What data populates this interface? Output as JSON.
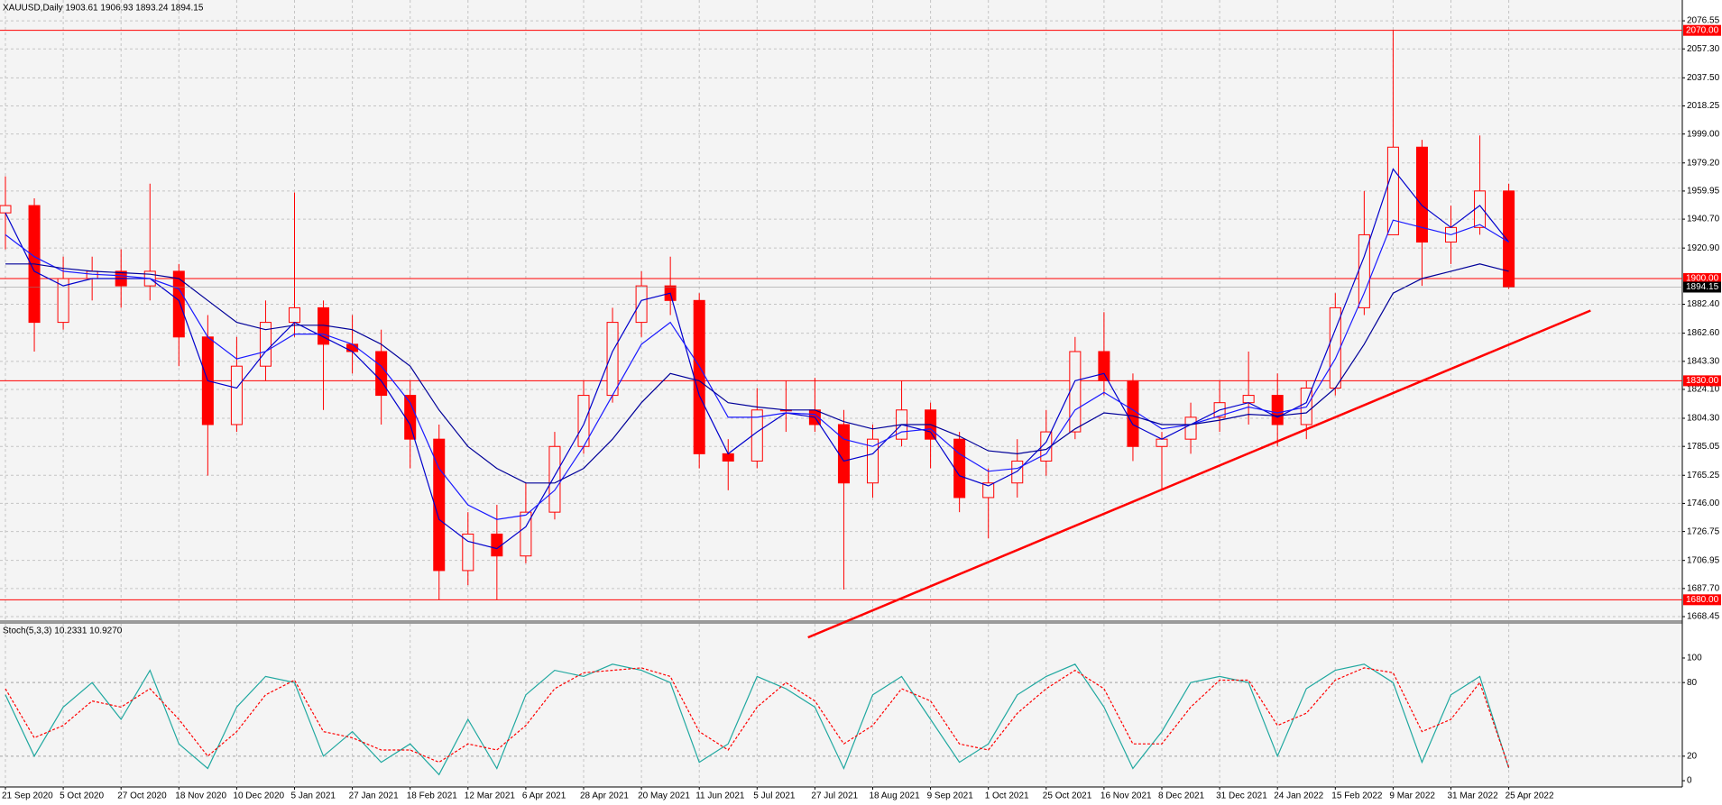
{
  "chart_data": {
    "type": "candlestick",
    "title": "XAUUSD,Daily  1903.61 1906.93 1893.24 1894.15",
    "categories": [
      "21 Sep 2020",
      null,
      "5 Oct 2020",
      null,
      "27 Oct 2020",
      null,
      "18 Nov 2020",
      null,
      "10 Dec 2020",
      null,
      "5 Jan 2021",
      null,
      "27 Jan 2021",
      null,
      "18 Feb 2021",
      null,
      "12 Mar 2021",
      null,
      "6 Apr 2021",
      null,
      "28 Apr 2021",
      null,
      "20 May 2021",
      null,
      "11 Jun 2021",
      null,
      "5 Jul 2021",
      null,
      "27 Jul 2021",
      null,
      "18 Aug 2021",
      null,
      "9 Sep 2021",
      null,
      "1 Oct 2021",
      null,
      "25 Oct 2021",
      null,
      "16 Nov 2021",
      null,
      "8 Dec 2021",
      null,
      "31 Dec 2021",
      null,
      "24 Jan 2022",
      null,
      "15 Feb 2022",
      null,
      "9 Mar 2022",
      null,
      "31 Mar 2022",
      null,
      "25 Apr 2022"
    ],
    "open": [
      1945,
      1950,
      1870,
      1900,
      1905,
      1895,
      1905,
      1860,
      1800,
      1840,
      1870,
      1880,
      1855,
      1850,
      1820,
      1790,
      1700,
      1725,
      1710,
      1740,
      1785,
      1820,
      1870,
      1895,
      1885,
      1780,
      1775,
      1810,
      1810,
      1800,
      1760,
      1790,
      1810,
      1790,
      1750,
      1760,
      1775,
      1795,
      1850,
      1830,
      1785,
      1790,
      1805,
      1815,
      1820,
      1800,
      1825,
      1880,
      1930,
      1990,
      1925,
      1935,
      1960
    ],
    "high": [
      1970,
      1955,
      1915,
      1915,
      1920,
      1965,
      1910,
      1875,
      1860,
      1885,
      1959,
      1885,
      1875,
      1865,
      1830,
      1800,
      1740,
      1745,
      1760,
      1795,
      1830,
      1880,
      1905,
      1915,
      1890,
      1790,
      1825,
      1830,
      1832,
      1810,
      1800,
      1830,
      1815,
      1795,
      1770,
      1790,
      1810,
      1860,
      1877,
      1835,
      1795,
      1815,
      1830,
      1850,
      1835,
      1830,
      1890,
      1960,
      2070,
      1995,
      1950,
      1998,
      1965
    ],
    "low": [
      1920,
      1850,
      1865,
      1885,
      1880,
      1885,
      1840,
      1765,
      1795,
      1830,
      1860,
      1810,
      1835,
      1800,
      1770,
      1680,
      1690,
      1680,
      1705,
      1735,
      1780,
      1815,
      1860,
      1875,
      1770,
      1755,
      1770,
      1795,
      1795,
      1687,
      1750,
      1785,
      1770,
      1740,
      1722,
      1750,
      1765,
      1790,
      1820,
      1775,
      1755,
      1780,
      1795,
      1800,
      1785,
      1790,
      1820,
      1875,
      1930,
      1895,
      1910,
      1930,
      1893
    ],
    "close": [
      1950,
      1870,
      1900,
      1905,
      1895,
      1905,
      1860,
      1800,
      1840,
      1870,
      1880,
      1855,
      1850,
      1820,
      1790,
      1700,
      1725,
      1710,
      1740,
      1785,
      1820,
      1870,
      1895,
      1885,
      1780,
      1775,
      1810,
      1810,
      1800,
      1760,
      1790,
      1810,
      1790,
      1750,
      1760,
      1775,
      1795,
      1850,
      1830,
      1785,
      1790,
      1805,
      1815,
      1820,
      1800,
      1825,
      1880,
      1930,
      1990,
      1925,
      1935,
      1960,
      1894.15
    ],
    "candle_color": "#ff0000",
    "series": [
      {
        "color": "#0000cc",
        "values": [
          1945,
          1905,
          1895,
          1900,
          1900,
          1900,
          1885,
          1830,
          1825,
          1850,
          1870,
          1860,
          1850,
          1830,
          1800,
          1735,
          1720,
          1715,
          1730,
          1765,
          1800,
          1850,
          1885,
          1890,
          1820,
          1780,
          1795,
          1808,
          1805,
          1775,
          1780,
          1800,
          1795,
          1765,
          1758,
          1768,
          1788,
          1830,
          1835,
          1800,
          1790,
          1800,
          1810,
          1815,
          1805,
          1815,
          1865,
          1915,
          1975,
          1950,
          1935,
          1950,
          1925
        ]
      },
      {
        "color": "#1a1aff",
        "values": [
          1930,
          1915,
          1905,
          1903,
          1902,
          1900,
          1893,
          1860,
          1845,
          1850,
          1862,
          1862,
          1855,
          1840,
          1815,
          1770,
          1745,
          1735,
          1738,
          1755,
          1785,
          1820,
          1855,
          1870,
          1840,
          1805,
          1805,
          1808,
          1807,
          1790,
          1785,
          1795,
          1797,
          1780,
          1768,
          1770,
          1780,
          1810,
          1822,
          1810,
          1797,
          1800,
          1806,
          1812,
          1808,
          1812,
          1845,
          1890,
          1940,
          1935,
          1930,
          1937,
          1925
        ]
      },
      {
        "color": "#000099",
        "values": [
          1910,
          1910,
          1907,
          1905,
          1904,
          1903,
          1900,
          1885,
          1870,
          1865,
          1868,
          1868,
          1865,
          1855,
          1840,
          1810,
          1785,
          1770,
          1760,
          1760,
          1770,
          1790,
          1815,
          1835,
          1830,
          1815,
          1812,
          1810,
          1810,
          1802,
          1797,
          1800,
          1800,
          1792,
          1782,
          1780,
          1783,
          1797,
          1808,
          1806,
          1800,
          1800,
          1803,
          1807,
          1806,
          1808,
          1825,
          1855,
          1890,
          1900,
          1905,
          1910,
          1905
        ]
      }
    ],
    "ylim": [
      1666.0,
      2090.8
    ],
    "yticks": [
      2076.55,
      {
        "value": 2057.3,
        "label": "2057.30"
      },
      {
        "value": 2037.5,
        "label": "2037.50"
      },
      2018.25,
      {
        "value": 1999,
        "label": "1999.00"
      },
      {
        "value": 1979.2,
        "label": "1979.20"
      },
      1959.95,
      {
        "value": 1940.7,
        "label": "1940.70"
      },
      {
        "value": 1920.9,
        "label": "1920.90"
      },
      {
        "value": 1882.4,
        "label": "1882.40"
      },
      {
        "value": 1862.6,
        "label": "1862.60"
      },
      {
        "value": 1843.3,
        "label": "1843.30"
      },
      {
        "value": 1824.1,
        "label": "1824.10"
      },
      {
        "value": 1804.3,
        "label": "1804.30"
      },
      1785.05,
      1765.25,
      {
        "value": 1746,
        "label": "1746.00"
      },
      1726.75,
      1706.95,
      {
        "value": 1687.7,
        "label": "1687.70"
      },
      1668.45
    ],
    "grid": true,
    "hlines": [
      {
        "value": 2070,
        "label": "2070.00"
      },
      {
        "value": 1900,
        "label": "1900.00"
      },
      {
        "value": 1830,
        "label": "1830.00"
      },
      {
        "value": 1680,
        "label": "1680.00"
      }
    ],
    "hline_color": "#ff0000",
    "current_price": {
      "value": 1894.15,
      "label": "1894.15"
    },
    "trendline": {
      "x": [
        27.76,
        54.83
      ],
      "values": [
        1654.2,
        1878.1
      ],
      "color": "#ff0000"
    },
    "indicator": {
      "label": "Stoch(5,3,3) 10.2331 10.9270",
      "ylim": [
        -5.1,
        127.9
      ],
      "yticks": [
        0,
        20,
        80,
        100
      ],
      "levels": [
        20,
        80
      ],
      "series": [
        {
          "color": "#20a8a0",
          "values": [
            70,
            20,
            60,
            80,
            50,
            90,
            30,
            10,
            60,
            85,
            80,
            20,
            40,
            15,
            30,
            5,
            50,
            10,
            70,
            90,
            85,
            95,
            90,
            80,
            15,
            30,
            85,
            75,
            60,
            10,
            70,
            85,
            50,
            15,
            30,
            70,
            85,
            95,
            60,
            10,
            40,
            80,
            85,
            80,
            20,
            75,
            90,
            95,
            80,
            15,
            70,
            85,
            10.2331
          ]
        },
        {
          "color": "#ff0000",
          "dashed": true,
          "values": [
            75,
            35,
            45,
            65,
            60,
            75,
            50,
            20,
            40,
            70,
            82,
            40,
            35,
            25,
            25,
            15,
            30,
            25,
            45,
            75,
            88,
            90,
            92,
            85,
            40,
            25,
            60,
            80,
            65,
            30,
            45,
            75,
            65,
            30,
            25,
            55,
            75,
            90,
            75,
            30,
            30,
            60,
            82,
            82,
            45,
            55,
            82,
            92,
            88,
            40,
            50,
            80,
            10.927
          ]
        }
      ]
    }
  }
}
